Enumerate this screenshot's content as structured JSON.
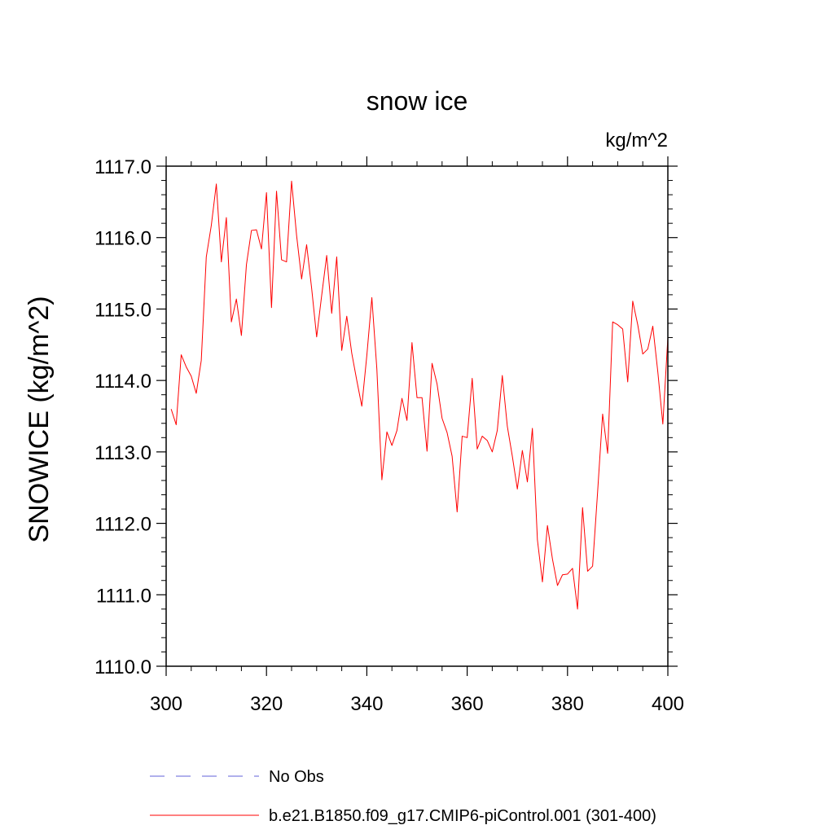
{
  "chart_data": {
    "type": "line",
    "title": "snow ice",
    "units_label": "kg/m^2",
    "xlabel": "",
    "ylabel": "SNOWICE  (kg/m^2)",
    "xlim": [
      300,
      400
    ],
    "ylim": [
      1110.0,
      1117.0
    ],
    "x_ticks": [
      300,
      320,
      340,
      360,
      380,
      400
    ],
    "x_tick_labels": [
      "300",
      "320",
      "340",
      "360",
      "380",
      "400"
    ],
    "y_ticks": [
      1110,
      1111,
      1112,
      1113,
      1114,
      1115,
      1116,
      1117
    ],
    "y_tick_labels": [
      "1110.0",
      "1111.0",
      "1112.0",
      "1113.0",
      "1114.0",
      "1115.0",
      "1116.0",
      "1117.0"
    ],
    "series": [
      {
        "name": "No Obs",
        "color": "#8080e0",
        "dash": "dashed",
        "values": []
      },
      {
        "name": "b.e21.B1850.f09_g17.CMIP6-piControl.001 (301-400)",
        "color": "#ff0000",
        "dash": "solid",
        "x": [
          301,
          302,
          303,
          304,
          305,
          306,
          307,
          308,
          309,
          310,
          311,
          312,
          313,
          314,
          315,
          316,
          317,
          318,
          319,
          320,
          321,
          322,
          323,
          324,
          325,
          326,
          327,
          328,
          329,
          330,
          331,
          332,
          333,
          334,
          335,
          336,
          337,
          338,
          339,
          340,
          341,
          342,
          343,
          344,
          345,
          346,
          347,
          348,
          349,
          350,
          351,
          352,
          353,
          354,
          355,
          356,
          357,
          358,
          359,
          360,
          361,
          362,
          363,
          364,
          365,
          366,
          367,
          368,
          369,
          370,
          371,
          372,
          373,
          374,
          375,
          376,
          377,
          378,
          379,
          380,
          381,
          382,
          383,
          384,
          385,
          386,
          387,
          388,
          389,
          390,
          391,
          392,
          393,
          394,
          395,
          396,
          397,
          398,
          399,
          400
        ],
        "values": [
          1113.6,
          1113.38,
          1114.36,
          1114.19,
          1114.06,
          1113.82,
          1114.28,
          1115.73,
          1116.17,
          1116.75,
          1115.66,
          1116.28,
          1114.82,
          1115.14,
          1114.63,
          1115.62,
          1116.1,
          1116.11,
          1115.84,
          1116.63,
          1115.02,
          1116.65,
          1115.69,
          1115.66,
          1116.79,
          1116.03,
          1115.42,
          1115.9,
          1115.29,
          1114.61,
          1115.19,
          1115.75,
          1114.94,
          1115.73,
          1114.42,
          1114.9,
          1114.38,
          1114.0,
          1113.64,
          1114.35,
          1115.16,
          1114.16,
          1112.61,
          1113.28,
          1113.09,
          1113.3,
          1113.75,
          1113.44,
          1114.53,
          1113.76,
          1113.76,
          1113.01,
          1114.24,
          1113.95,
          1113.47,
          1113.27,
          1112.94,
          1112.16,
          1113.22,
          1113.2,
          1114.03,
          1113.04,
          1113.22,
          1113.16,
          1113.0,
          1113.3,
          1114.07,
          1113.36,
          1112.94,
          1112.48,
          1113.02,
          1112.58,
          1113.33,
          1111.77,
          1111.18,
          1111.97,
          1111.5,
          1111.13,
          1111.28,
          1111.29,
          1111.37,
          1110.8,
          1112.22,
          1111.33,
          1111.4,
          1112.44,
          1113.53,
          1112.98,
          1114.82,
          1114.78,
          1114.72,
          1113.98,
          1115.11,
          1114.78,
          1114.37,
          1114.44,
          1114.76,
          1114.12,
          1113.39,
          1114.6
        ]
      }
    ]
  }
}
